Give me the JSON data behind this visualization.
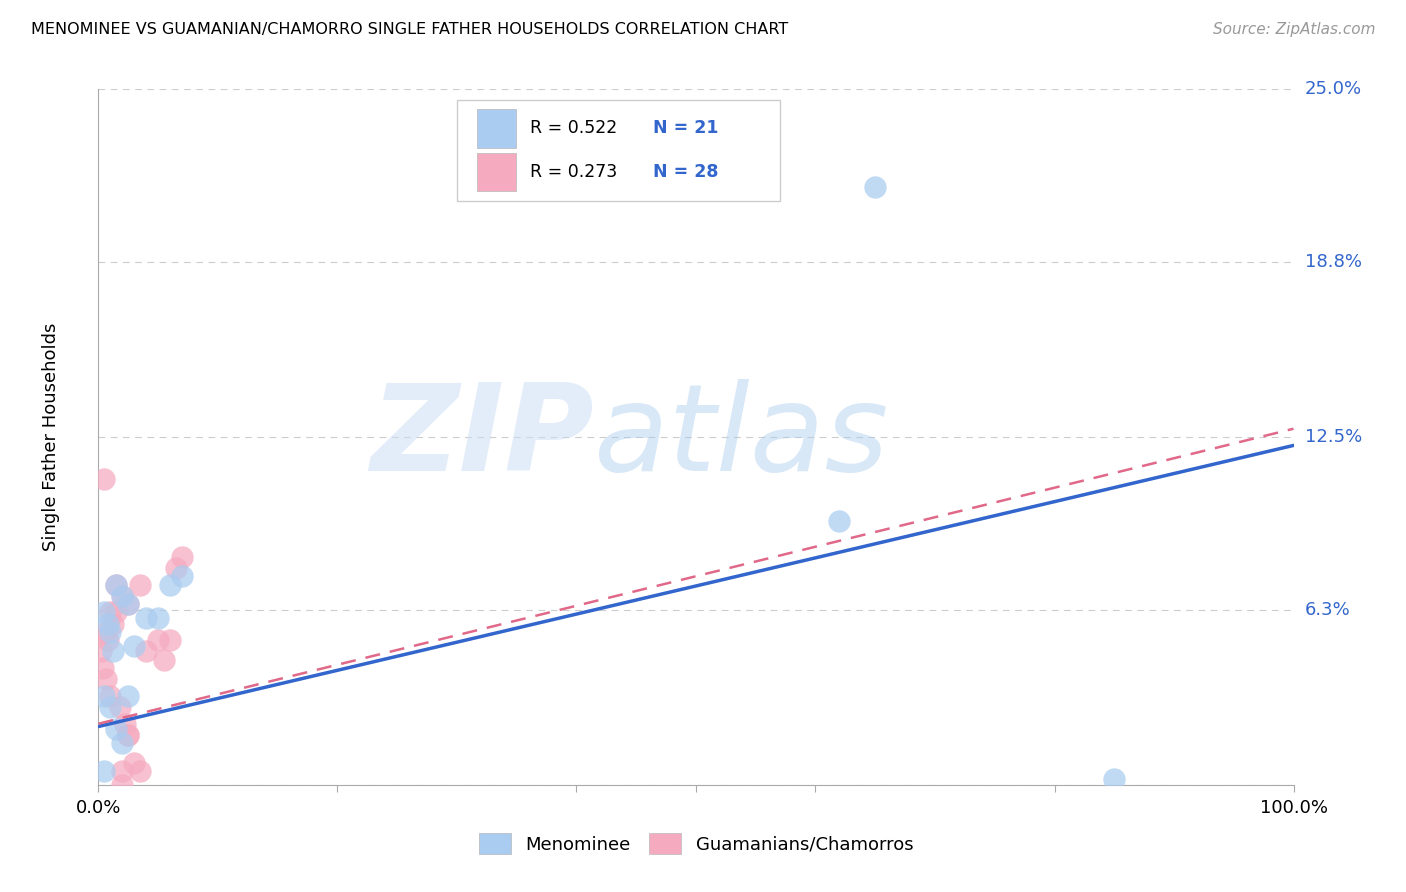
{
  "title": "MENOMINEE VS GUAMANIAN/CHAMORRO SINGLE FATHER HOUSEHOLDS CORRELATION CHART",
  "source": "Source: ZipAtlas.com",
  "ylabel": "Single Father Households",
  "background_color": "#ffffff",
  "grid_color": "#cccccc",
  "xlim": [
    0,
    1.0
  ],
  "ylim": [
    0,
    0.25
  ],
  "ytick_vals": [
    0.0,
    0.063,
    0.125,
    0.188,
    0.25
  ],
  "ytick_labels": [
    "",
    "6.3%",
    "12.5%",
    "18.8%",
    "25.0%"
  ],
  "menominee_R": "0.522",
  "menominee_N": "21",
  "guamanian_R": "0.273",
  "guamanian_N": "28",
  "menominee_color": "#aaccf0",
  "menominee_line_color": "#3366cc",
  "guamanian_color": "#f5aac0",
  "guamanian_line_color": "#e06888",
  "right_label_color": "#3366cc",
  "menominee_x": [
    0.005,
    0.008,
    0.01,
    0.012,
    0.015,
    0.02,
    0.025,
    0.03,
    0.04,
    0.05,
    0.06,
    0.07,
    0.005,
    0.01,
    0.015,
    0.02,
    0.025,
    0.62,
    0.65,
    0.005,
    0.85
  ],
  "menominee_y": [
    0.062,
    0.058,
    0.055,
    0.048,
    0.072,
    0.068,
    0.065,
    0.05,
    0.06,
    0.06,
    0.072,
    0.075,
    0.032,
    0.028,
    0.02,
    0.015,
    0.032,
    0.095,
    0.215,
    0.005,
    0.002
  ],
  "guamanian_x": [
    0.002,
    0.004,
    0.006,
    0.008,
    0.01,
    0.012,
    0.015,
    0.018,
    0.02,
    0.022,
    0.025,
    0.03,
    0.035,
    0.04,
    0.006,
    0.01,
    0.015,
    0.025,
    0.035,
    0.05,
    0.055,
    0.06,
    0.065,
    0.07,
    0.005,
    0.02,
    0.02,
    0.025
  ],
  "guamanian_y": [
    0.048,
    0.042,
    0.038,
    0.052,
    0.032,
    0.058,
    0.062,
    0.028,
    0.068,
    0.022,
    0.018,
    0.008,
    0.005,
    0.048,
    0.055,
    0.062,
    0.072,
    0.065,
    0.072,
    0.052,
    0.045,
    0.052,
    0.078,
    0.082,
    0.11,
    0.005,
    0.0,
    0.018
  ],
  "men_line_x0": 0.0,
  "men_line_y0": 0.021,
  "men_line_x1": 1.0,
  "men_line_y1": 0.122,
  "gua_line_x0": 0.0,
  "gua_line_y0": 0.022,
  "gua_line_x1": 1.0,
  "gua_line_y1": 0.128
}
